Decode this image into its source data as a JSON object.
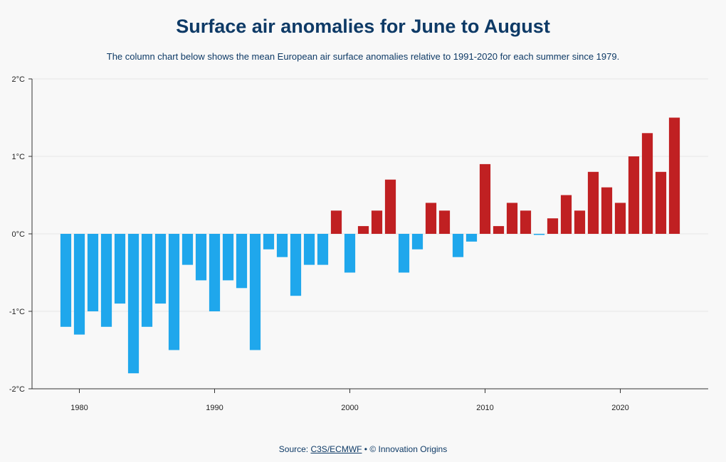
{
  "title": "Surface air anomalies for June to August",
  "subtitle": "The column chart below shows the mean European air surface anomalies relative to 1991-2020 for each summer since 1979.",
  "source": {
    "prefix": "Source: ",
    "link_text": "C3S/ECMWF",
    "suffix": " • © Innovation Origins"
  },
  "colors": {
    "negative": "#1fa7ec",
    "positive": "#c02022",
    "axis": "#333333",
    "grid": "#e6e6e6",
    "text": "#0e3a66"
  },
  "chart_data": {
    "type": "bar",
    "title": "Surface air anomalies for June to August",
    "xlabel": "",
    "ylabel": "",
    "unit": "°C",
    "ylim": [
      -2,
      2
    ],
    "y_ticks": [
      {
        "value": 2,
        "label": "2°C"
      },
      {
        "value": 1,
        "label": "1°C"
      },
      {
        "value": 0,
        "label": "0°C"
      },
      {
        "value": -1,
        "label": "-1°C"
      },
      {
        "value": -2,
        "label": "-2°C"
      }
    ],
    "x_ticks": [
      {
        "value": 1980,
        "label": "1980"
      },
      {
        "value": 1990,
        "label": "1990"
      },
      {
        "value": 2000,
        "label": "2000"
      },
      {
        "value": 2010,
        "label": "2010"
      },
      {
        "value": 2020,
        "label": "2020"
      }
    ],
    "xlim": [
      1976.5,
      2026.5
    ],
    "years": [
      1979,
      1980,
      1981,
      1982,
      1983,
      1984,
      1985,
      1986,
      1987,
      1988,
      1989,
      1990,
      1991,
      1992,
      1993,
      1994,
      1995,
      1996,
      1997,
      1998,
      1999,
      2000,
      2001,
      2002,
      2003,
      2004,
      2005,
      2006,
      2007,
      2008,
      2009,
      2010,
      2011,
      2012,
      2013,
      2014,
      2015,
      2016,
      2017,
      2018,
      2019,
      2020,
      2021,
      2022,
      2023,
      2024
    ],
    "values": [
      -1.2,
      -1.3,
      -1.0,
      -1.2,
      -0.9,
      -1.8,
      -1.2,
      -0.9,
      -1.5,
      -0.4,
      -0.6,
      -1.0,
      -0.6,
      -0.7,
      -1.5,
      -0.2,
      -0.3,
      -0.8,
      -0.4,
      -0.4,
      0.3,
      -0.5,
      0.1,
      0.3,
      0.7,
      -0.5,
      -0.2,
      0.4,
      0.3,
      -0.3,
      -0.1,
      0.9,
      0.1,
      0.4,
      0.3,
      -0.01,
      0.2,
      0.5,
      0.3,
      0.8,
      0.6,
      0.4,
      1.0,
      1.3,
      0.8,
      1.5
    ],
    "grid": true,
    "legend": "none"
  }
}
